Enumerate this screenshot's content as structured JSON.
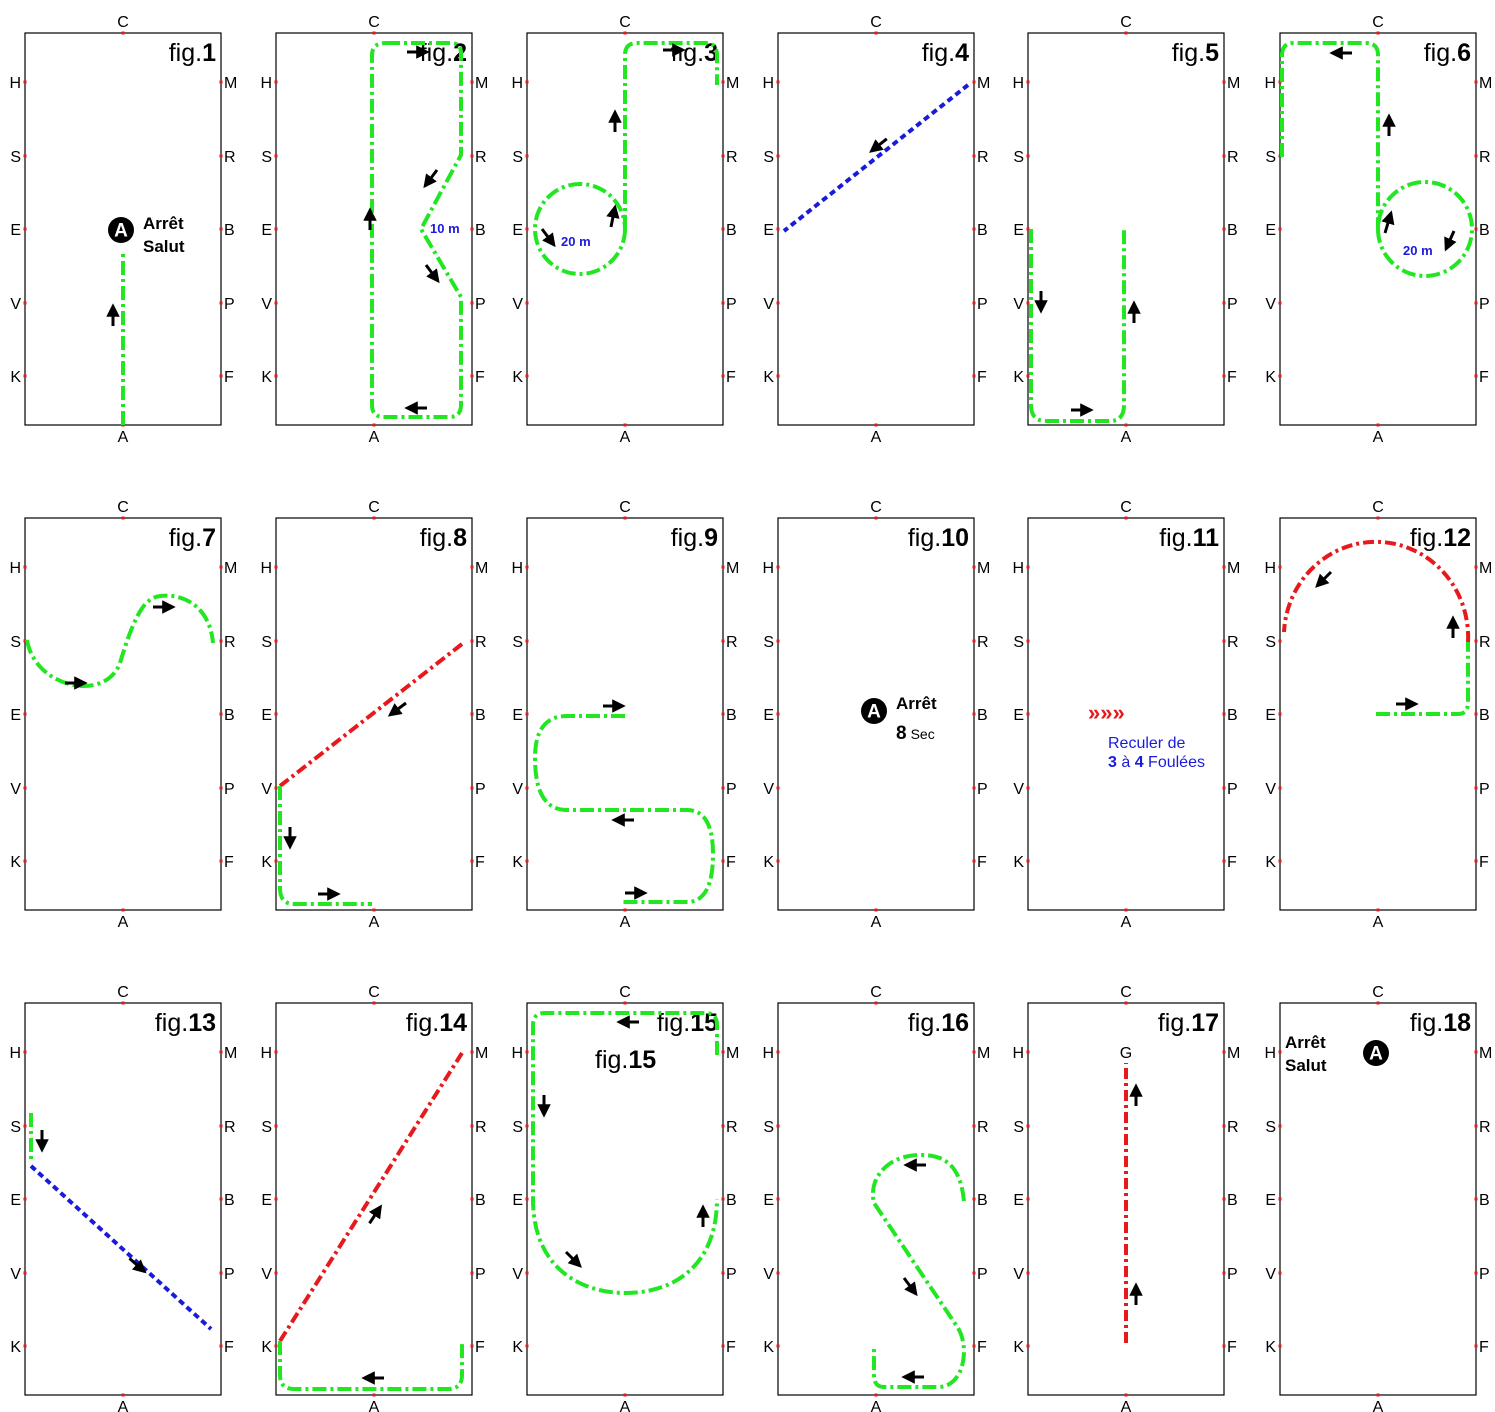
{
  "letters": {
    "top": "C",
    "bottom": "A",
    "left": [
      "H",
      "S",
      "E",
      "V",
      "K"
    ],
    "right": [
      "M",
      "R",
      "B",
      "P",
      "F"
    ]
  },
  "fig_prefix": "fig.",
  "figures": [
    {
      "num": "1",
      "notes": {
        "badge": "A",
        "line1": "Arrêt",
        "line2": "Salut"
      }
    },
    {
      "num": "2",
      "notes": {
        "dim": "10 m"
      }
    },
    {
      "num": "3",
      "notes": {
        "dim": "20 m"
      }
    },
    {
      "num": "4"
    },
    {
      "num": "5"
    },
    {
      "num": "6",
      "notes": {
        "dim": "20 m"
      }
    },
    {
      "num": "7"
    },
    {
      "num": "8"
    },
    {
      "num": "9"
    },
    {
      "num": "10",
      "notes": {
        "badge": "A",
        "line1": "Arrêt",
        "line2_num": "8",
        "line2_unit": "Sec"
      }
    },
    {
      "num": "11",
      "notes": {
        "chevrons": "»»»",
        "line1": "Reculer de",
        "n1": "3",
        "mid": "à",
        "n2": "4",
        "tail": "Foulées"
      }
    },
    {
      "num": "12"
    },
    {
      "num": "13"
    },
    {
      "num": "14"
    },
    {
      "num": "15",
      "notes": {
        "inner_prefix": "fig.",
        "inner_num": "15"
      }
    },
    {
      "num": "16"
    },
    {
      "num": "17",
      "notes": {
        "letter": "G"
      }
    },
    {
      "num": "18",
      "notes": {
        "badge": "A",
        "line1": "Arrêt",
        "line2": "Salut"
      }
    }
  ],
  "colors": {
    "green_track": "#22e622",
    "red_track": "#e8191c",
    "blue_track": "#1a1adb",
    "arrow": "#000000",
    "marker_dot": "#e8191c"
  }
}
